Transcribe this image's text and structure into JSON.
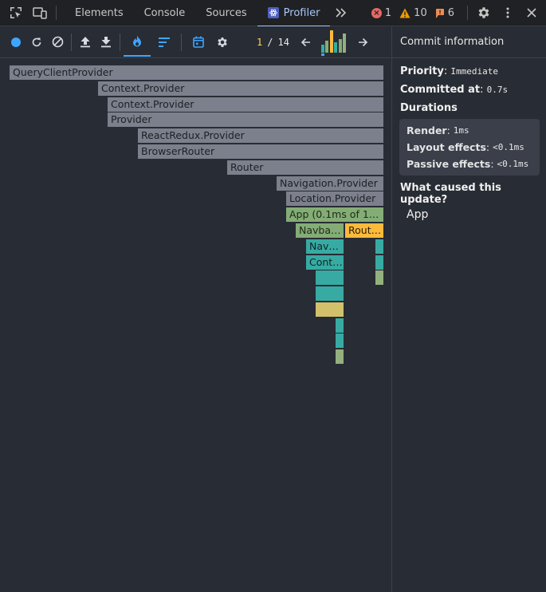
{
  "devtools": {
    "tabs": [
      "Elements",
      "Console",
      "Sources",
      "Profiler"
    ],
    "active_tab": "Profiler",
    "errors": "1",
    "warnings": "10",
    "issues": "6"
  },
  "profiler": {
    "commit_index": "1",
    "commit_separator": "/",
    "commit_total": "14",
    "commit_bars": [
      0.35,
      0.55,
      1.0,
      0.45,
      0.6,
      0.85
    ]
  },
  "commit_info": {
    "header": "Commit information",
    "priority_label": "Priority",
    "priority_value": "Immediate",
    "committed_label": "Committed at",
    "committed_value": "0.7s",
    "durations_label": "Durations",
    "render_label": "Render",
    "render_value": "1ms",
    "layout_label": "Layout effects",
    "layout_value": "<0.1ms",
    "passive_label": "Passive effects",
    "passive_value": "<0.1ms",
    "cause_label": "What caused this update?",
    "cause_value": "App"
  },
  "flame": {
    "labels": {
      "query": "QueryClientProvider",
      "context1": "Context.Provider",
      "context2": "Context.Provider",
      "provider": "Provider",
      "redux": "ReactRedux.Provider",
      "browser": "BrowserRouter",
      "router": "Router",
      "navigation": "Navigation.Provider",
      "location": "Location.Provider",
      "app": "App (0.1ms of 1ms)",
      "navbar": "Navbar…",
      "rout": "Rout…",
      "navb": "Navb…",
      "cont": "Cont…"
    }
  }
}
